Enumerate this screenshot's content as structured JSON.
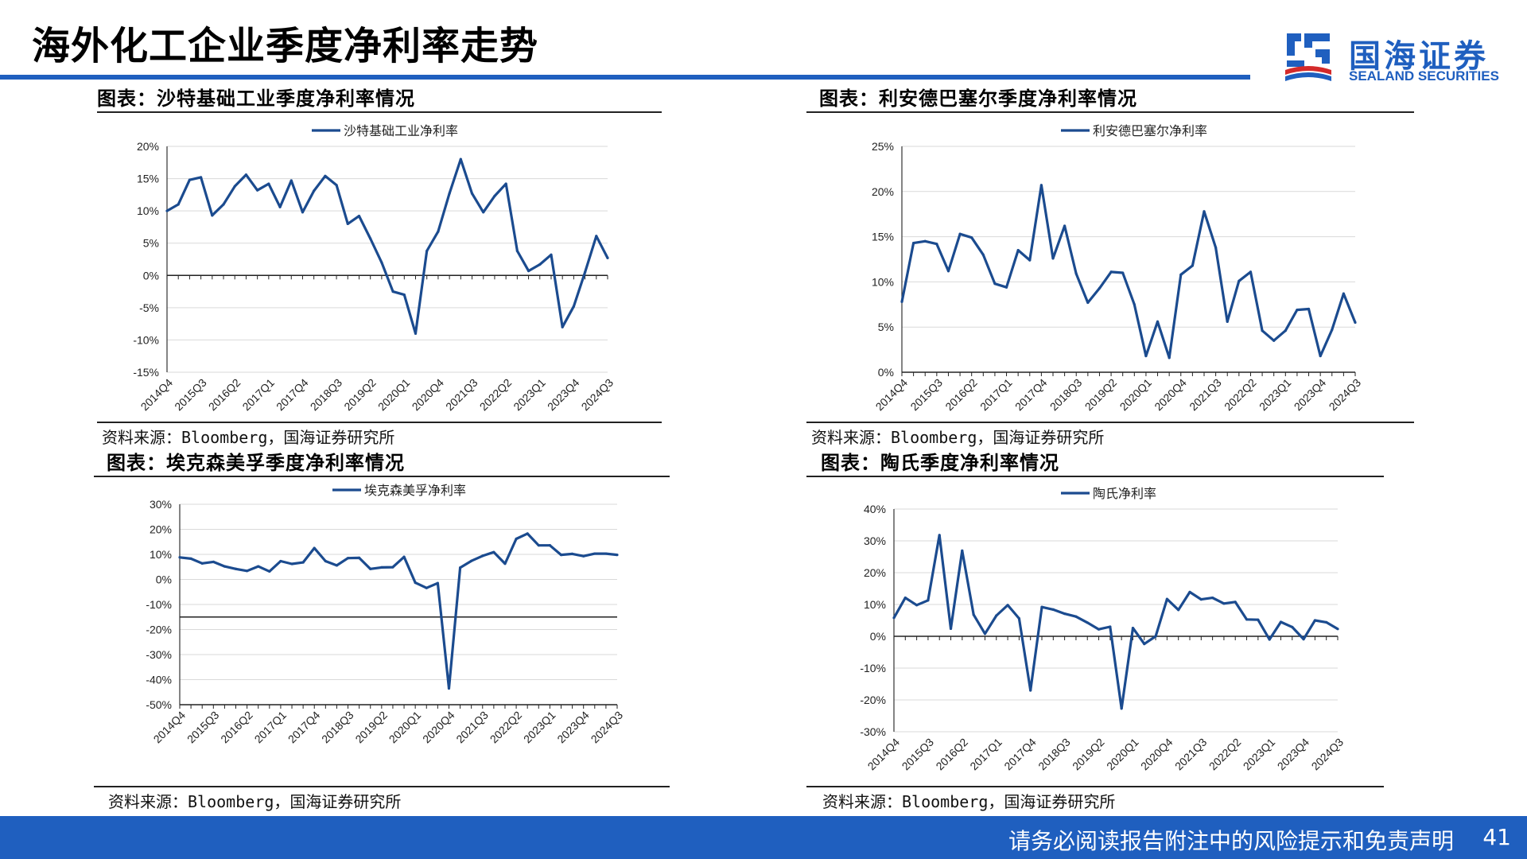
{
  "header": {
    "title": "海外化工企业季度净利率走势",
    "logo_cn": "国海证券",
    "logo_en": "SEALAND SECURITIES"
  },
  "colors": {
    "accent": "#1f5fbf",
    "series": "#1b4b8f",
    "grid": "#d9d9d9"
  },
  "footer": {
    "disclaimer": "请务必阅读报告附注中的风险提示和免责声明",
    "page_number": "41"
  },
  "charts": [
    {
      "panel_title": "图表：沙特基础工业季度净利率情况",
      "source": "资料来源：Bloomberg，国海证券研究所"
    },
    {
      "panel_title": "图表：利安德巴塞尔季度净利率情况",
      "source": "资料来源：Bloomberg，国海证券研究所"
    },
    {
      "panel_title": "图表：埃克森美孚季度净利率情况",
      "source": "资料来源：Bloomberg，国海证券研究所"
    },
    {
      "panel_title": "图表：陶氏季度净利率情况",
      "source": "资料来源：Bloomberg，国海证券研究所"
    }
  ],
  "chart_data": [
    {
      "type": "line",
      "legend": "沙特基础工业净利率",
      "ylim": [
        -15,
        20
      ],
      "yticks": [
        20,
        15,
        10,
        5,
        0,
        -5,
        -10,
        -15
      ],
      "ytick_suffix": "%",
      "categories": [
        "2014Q4",
        "2015Q1",
        "2015Q2",
        "2015Q3",
        "2015Q4",
        "2016Q1",
        "2016Q2",
        "2016Q3",
        "2016Q4",
        "2017Q1",
        "2017Q2",
        "2017Q3",
        "2017Q4",
        "2018Q1",
        "2018Q2",
        "2018Q3",
        "2018Q4",
        "2019Q1",
        "2019Q2",
        "2019Q3",
        "2019Q4",
        "2020Q1",
        "2020Q2",
        "2020Q3",
        "2020Q4",
        "2021Q1",
        "2021Q2",
        "2021Q3",
        "2021Q4",
        "2022Q1",
        "2022Q2",
        "2022Q3",
        "2022Q4",
        "2023Q1",
        "2023Q2",
        "2023Q3",
        "2023Q4",
        "2024Q1",
        "2024Q2",
        "2024Q3"
      ],
      "tick_labels": [
        "2014Q4",
        "2015Q3",
        "2016Q2",
        "2017Q1",
        "2017Q4",
        "2018Q3",
        "2019Q2",
        "2020Q1",
        "2020Q4",
        "2021Q3",
        "2022Q2",
        "2023Q1",
        "2023Q4",
        "2024Q3"
      ],
      "values": [
        10,
        11,
        14.8,
        15.2,
        9.3,
        11,
        13.8,
        15.6,
        13.2,
        14.2,
        10.6,
        14.7,
        9.8,
        13.1,
        15.4,
        14,
        8,
        9.2,
        5.7,
        2,
        -2.5,
        -3,
        -9,
        3.8,
        6.8,
        12.7,
        18,
        12.7,
        9.8,
        12.3,
        14.2,
        3.8,
        0.7,
        1.7,
        3.2,
        -8,
        -4.8,
        0.5,
        6.1,
        2.7
      ]
    },
    {
      "type": "line",
      "legend": "利安德巴塞尔净利率",
      "ylim": [
        0,
        25
      ],
      "yticks": [
        25,
        20,
        15,
        10,
        5,
        0
      ],
      "ytick_suffix": "%",
      "categories": [
        "2014Q4",
        "2015Q1",
        "2015Q2",
        "2015Q3",
        "2015Q4",
        "2016Q1",
        "2016Q2",
        "2016Q3",
        "2016Q4",
        "2017Q1",
        "2017Q2",
        "2017Q3",
        "2017Q4",
        "2018Q1",
        "2018Q2",
        "2018Q3",
        "2018Q4",
        "2019Q1",
        "2019Q2",
        "2019Q3",
        "2019Q4",
        "2020Q1",
        "2020Q2",
        "2020Q3",
        "2020Q4",
        "2021Q1",
        "2021Q2",
        "2021Q3",
        "2021Q4",
        "2022Q1",
        "2022Q2",
        "2022Q3",
        "2022Q4",
        "2023Q1",
        "2023Q2",
        "2023Q3",
        "2023Q4",
        "2024Q1",
        "2024Q2",
        "2024Q3"
      ],
      "tick_labels": [
        "2014Q4",
        "2015Q3",
        "2016Q2",
        "2017Q1",
        "2017Q4",
        "2018Q3",
        "2019Q2",
        "2020Q1",
        "2020Q4",
        "2021Q3",
        "2022Q2",
        "2023Q1",
        "2023Q4",
        "2024Q3"
      ],
      "values": [
        7.8,
        14.3,
        14.5,
        14.2,
        11.2,
        15.3,
        14.9,
        13,
        9.8,
        9.4,
        13.5,
        12.4,
        20.7,
        12.6,
        16.2,
        10.9,
        7.7,
        9.3,
        11.1,
        11,
        7.5,
        1.8,
        5.6,
        1.6,
        10.8,
        11.8,
        17.8,
        13.8,
        5.6,
        10.1,
        11.1,
        4.6,
        3.5,
        4.6,
        6.9,
        7,
        1.8,
        4.7,
        8.7,
        5.5
      ]
    },
    {
      "type": "line",
      "legend": "埃克森美孚净利率",
      "ylim": [
        -50,
        30
      ],
      "yticks": [
        30,
        20,
        10,
        0,
        -10,
        -20,
        -30,
        -40,
        -50
      ],
      "ytick_suffix": "%",
      "categories": [
        "2014Q4",
        "2015Q1",
        "2015Q2",
        "2015Q3",
        "2015Q4",
        "2016Q1",
        "2016Q2",
        "2016Q3",
        "2016Q4",
        "2017Q1",
        "2017Q2",
        "2017Q3",
        "2017Q4",
        "2018Q1",
        "2018Q2",
        "2018Q3",
        "2018Q4",
        "2019Q1",
        "2019Q2",
        "2019Q3",
        "2019Q4",
        "2020Q1",
        "2020Q2",
        "2020Q3",
        "2020Q4",
        "2021Q1",
        "2021Q2",
        "2021Q3",
        "2021Q4",
        "2022Q1",
        "2022Q2",
        "2022Q3",
        "2022Q4",
        "2023Q1",
        "2023Q2",
        "2023Q3",
        "2023Q4",
        "2024Q1",
        "2024Q2",
        "2024Q3"
      ],
      "tick_labels": [
        "2014Q4",
        "2015Q3",
        "2016Q2",
        "2017Q1",
        "2017Q4",
        "2018Q3",
        "2019Q2",
        "2020Q1",
        "2020Q4",
        "2021Q3",
        "2022Q2",
        "2023Q1",
        "2023Q4",
        "2024Q3"
      ],
      "values": [
        8.8,
        8.3,
        6.4,
        7,
        5.2,
        4.2,
        3.4,
        5.2,
        3.2,
        7.3,
        6.2,
        6.8,
        12.5,
        7.3,
        5.6,
        8.5,
        8.6,
        4.2,
        4.8,
        4.9,
        9,
        -1.3,
        -3.4,
        -1.5,
        -43.5,
        4.7,
        7.4,
        9.4,
        10.9,
        6.3,
        16.2,
        18.3,
        13.6,
        13.6,
        9.8,
        10.2,
        9.3,
        10.3,
        10.3,
        9.8
      ]
    },
    {
      "type": "line",
      "legend": "陶氏净利率",
      "ylim": [
        -30,
        40
      ],
      "yticks": [
        40,
        30,
        20,
        10,
        0,
        -10,
        -20,
        -30
      ],
      "ytick_suffix": "%",
      "categories": [
        "2014Q4",
        "2015Q1",
        "2015Q2",
        "2015Q3",
        "2015Q4",
        "2016Q1",
        "2016Q2",
        "2016Q3",
        "2016Q4",
        "2017Q1",
        "2017Q2",
        "2017Q3",
        "2017Q4",
        "2018Q1",
        "2018Q2",
        "2018Q3",
        "2018Q4",
        "2019Q1",
        "2019Q2",
        "2019Q3",
        "2019Q4",
        "2020Q1",
        "2020Q2",
        "2020Q3",
        "2020Q4",
        "2021Q1",
        "2021Q2",
        "2021Q3",
        "2021Q4",
        "2022Q1",
        "2022Q2",
        "2022Q3",
        "2022Q4",
        "2023Q1",
        "2023Q2",
        "2023Q3",
        "2023Q4",
        "2024Q1",
        "2024Q2",
        "2024Q3"
      ],
      "tick_labels": [
        "2014Q4",
        "2015Q3",
        "2016Q2",
        "2017Q1",
        "2017Q4",
        "2018Q3",
        "2019Q2",
        "2020Q1",
        "2020Q4",
        "2021Q3",
        "2022Q2",
        "2023Q1",
        "2023Q4",
        "2024Q3"
      ],
      "values": [
        5.8,
        12.1,
        9.8,
        11.3,
        31.8,
        2.4,
        26.9,
        6.8,
        0.8,
        6.5,
        9.8,
        5.6,
        -17,
        9.2,
        8.4,
        7.1,
        6.2,
        4.3,
        2.2,
        3,
        -22.7,
        2.6,
        -2.4,
        0,
        11.7,
        8.3,
        13.9,
        11.6,
        12.1,
        10.3,
        10.8,
        5.3,
        5.2,
        -1,
        4.5,
        2.9,
        -0.9,
        5,
        4.4,
        2.3
      ]
    }
  ]
}
